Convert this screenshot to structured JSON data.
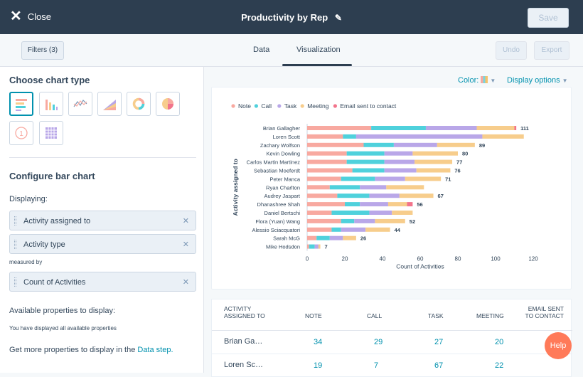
{
  "topbar": {
    "close_label": "Close",
    "title": "Productivity by Rep",
    "save_label": "Save"
  },
  "subbar": {
    "filters_label": "Filters (3)",
    "tabs": [
      "Data",
      "Visualization"
    ],
    "undo_label": "Undo",
    "export_label": "Export"
  },
  "left": {
    "choose_heading": "Choose chart type",
    "chart_types": [
      "horizontal-bar",
      "vertical-bar",
      "line",
      "area",
      "donut",
      "pie",
      "kpi",
      "table"
    ],
    "configure_heading": "Configure bar chart",
    "displaying_label": "Displaying:",
    "displaying": [
      "Activity assigned to",
      "Activity type"
    ],
    "measured_label": "measured by",
    "measure": "Count of Activities",
    "available_label": "Available properties to display:",
    "all_displayed": "You have displayed all available properties",
    "more_prefix": "Get more properties to display in the ",
    "more_link": "Data step."
  },
  "right": {
    "color_label": "Color:",
    "display_options": "Display options"
  },
  "colors": {
    "note": "#f8a9a0",
    "call": "#4fd1dc",
    "task": "#b9a7e8",
    "meeting": "#f7cd8c",
    "email": "#f2748b",
    "accent": "#0091ae"
  },
  "chart_data": {
    "type": "bar",
    "orientation": "horizontal",
    "stacked": true,
    "ylabel": "Activity assigned to",
    "xlabel": "Count of Activities",
    "xlim": [
      0,
      120
    ],
    "xticks": [
      0,
      20,
      40,
      60,
      80,
      100,
      120
    ],
    "legend": [
      "Note",
      "Call",
      "Task",
      "Meeting",
      "Email sent to contact"
    ],
    "legend_position": "top-left",
    "categories": [
      "Brian Gallagher",
      "Loren Scott",
      "Zachary Wolfson",
      "Kevin Dowling",
      "Carlos Martin Martinez",
      "Sebastian Moeferdt",
      "Peter Manca",
      "Ryan Charlton",
      "Audrey Jaspart",
      "Dhanashree Shah",
      "Daniel Bertschi",
      "Flora (Yuan) Wang",
      "Alessio Sciacquatori",
      "Sarah McG",
      "Mike Hodsdon"
    ],
    "totals": [
      "111",
      "",
      "89",
      "80",
      "77",
      "76",
      "71",
      "",
      "67",
      "56",
      "",
      "52",
      "44",
      "26",
      "7"
    ],
    "series": [
      {
        "name": "Note",
        "values": [
          34,
          19,
          30,
          21,
          21,
          24,
          18,
          12,
          16,
          20,
          13,
          18,
          13,
          5,
          1
        ]
      },
      {
        "name": "Call",
        "values": [
          29,
          7,
          16,
          20,
          20,
          17,
          18,
          16,
          17,
          8,
          20,
          7,
          5,
          7,
          3
        ]
      },
      {
        "name": "Task",
        "values": [
          27,
          67,
          23,
          15,
          16,
          17,
          16,
          14,
          16,
          15,
          12,
          11,
          13,
          7,
          2
        ]
      },
      {
        "name": "Meeting",
        "values": [
          20,
          22,
          20,
          24,
          20,
          18,
          19,
          20,
          18,
          10,
          11,
          16,
          13,
          7,
          1
        ]
      },
      {
        "name": "Email sent to contact",
        "values": [
          1,
          0,
          0,
          0,
          0,
          0,
          0,
          0,
          0,
          3,
          0,
          0,
          0,
          0,
          0
        ]
      }
    ]
  },
  "table": {
    "headers": [
      "ACTIVITY ASSIGNED TO",
      "NOTE",
      "CALL",
      "TASK",
      "MEETING",
      "EMAIL SENT TO CONTACT"
    ],
    "rows": [
      [
        "Brian Ga…",
        "34",
        "29",
        "27",
        "20",
        ""
      ],
      [
        "Loren Sc…",
        "19",
        "7",
        "67",
        "22",
        ""
      ]
    ]
  },
  "help_label": "Help"
}
